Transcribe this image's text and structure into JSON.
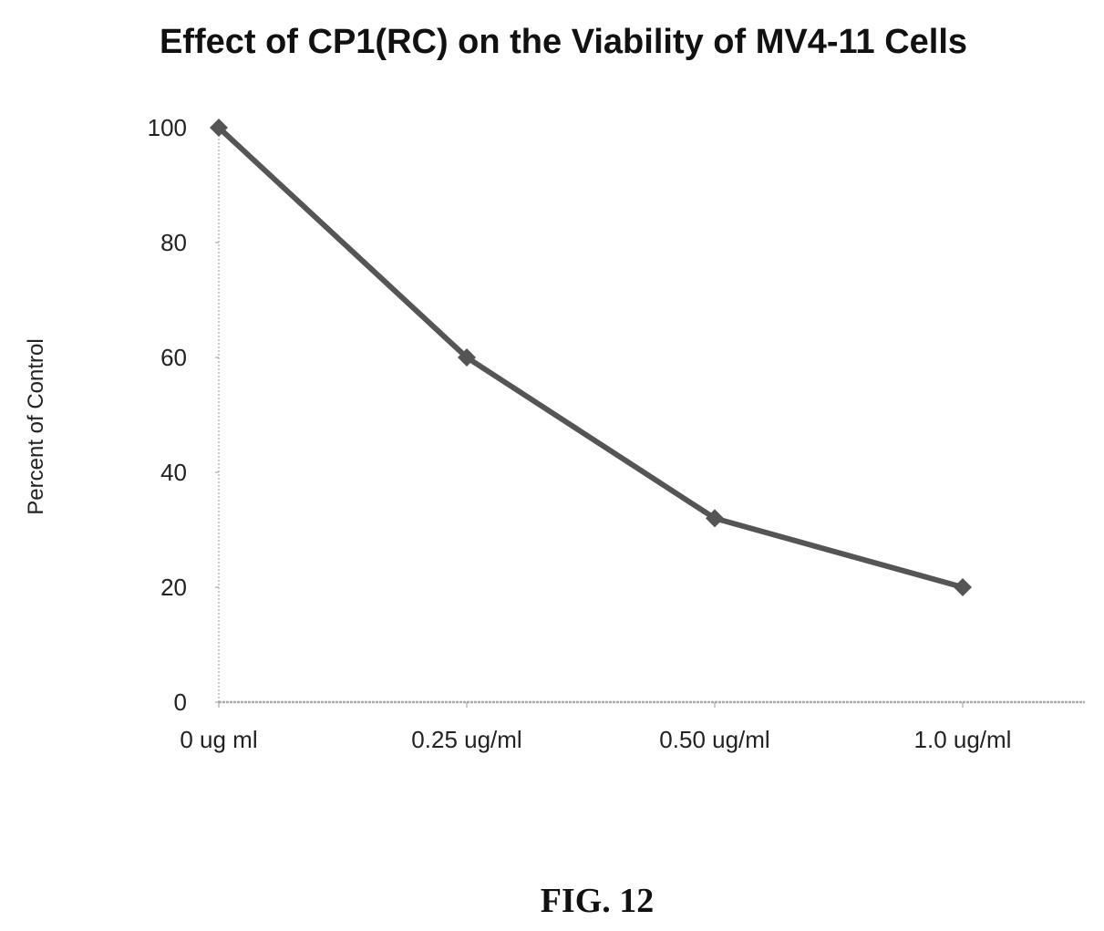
{
  "chart_data": {
    "type": "line",
    "title": "Effect of CP1(RC) on the Viability of MV4-11 Cells",
    "xlabel": "",
    "ylabel": "Percent of Control",
    "categories": [
      "0 ug ml",
      "0.25 ug/ml",
      "0.50 ug/ml",
      "1.0 ug/ml"
    ],
    "values": [
      100,
      60,
      32,
      20
    ],
    "ylim": [
      0,
      100
    ],
    "yticks": [
      0,
      20,
      40,
      60,
      80,
      100
    ],
    "grid": false,
    "marker": "diamond",
    "line_color": "#555555"
  },
  "figure_label": "FIG. 12"
}
